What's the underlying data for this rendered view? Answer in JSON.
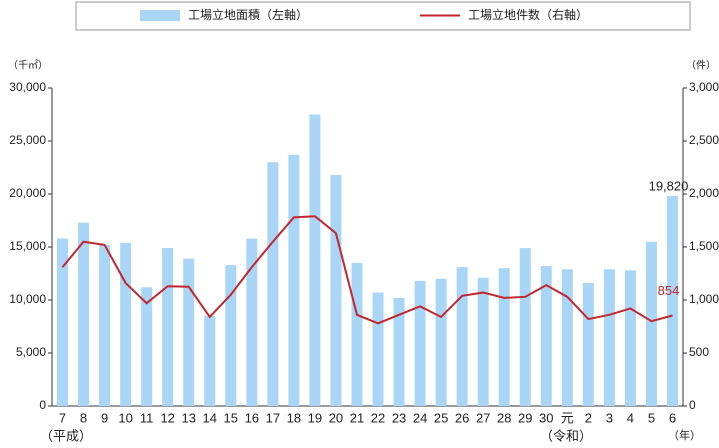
{
  "chart_data": {
    "type": "bar_line",
    "categories": [
      "7",
      "8",
      "9",
      "10",
      "11",
      "12",
      "13",
      "14",
      "15",
      "16",
      "17",
      "18",
      "19",
      "20",
      "21",
      "22",
      "23",
      "24",
      "25",
      "26",
      "27",
      "28",
      "29",
      "30",
      "元",
      "2",
      "3",
      "4",
      "5",
      "6"
    ],
    "series": [
      {
        "name": "工場立地面積（左軸）",
        "type": "bar",
        "color": "#a9d5f7",
        "values": [
          15800,
          17300,
          15200,
          15400,
          11200,
          14900,
          13900,
          8500,
          13300,
          15800,
          23000,
          23700,
          27500,
          21800,
          13500,
          10700,
          10200,
          11800,
          12000,
          13100,
          12100,
          13000,
          14900,
          13200,
          12900,
          11600,
          12900,
          12800,
          15500,
          19820
        ],
        "value_labels": [
          null,
          null,
          null,
          null,
          null,
          null,
          null,
          null,
          null,
          null,
          null,
          null,
          null,
          null,
          null,
          null,
          null,
          null,
          null,
          null,
          null,
          null,
          null,
          null,
          null,
          null,
          null,
          null,
          null,
          "19,820"
        ]
      },
      {
        "name": "工場立地件数（右軸）",
        "type": "line",
        "axis": "y2",
        "color": "#c1272d",
        "values": [
          1310,
          1550,
          1520,
          1160,
          970,
          1130,
          1125,
          840,
          1050,
          1310,
          1550,
          1780,
          1790,
          1630,
          860,
          780,
          860,
          940,
          840,
          1040,
          1070,
          1020,
          1030,
          1140,
          1030,
          820,
          860,
          920,
          800,
          854
        ],
        "value_labels": [
          null,
          null,
          null,
          null,
          null,
          null,
          null,
          null,
          null,
          null,
          null,
          null,
          null,
          null,
          null,
          null,
          null,
          null,
          null,
          null,
          null,
          null,
          null,
          null,
          null,
          null,
          null,
          null,
          null,
          "854"
        ]
      }
    ],
    "ylim": [
      0,
      30000
    ],
    "yticks": [
      0,
      {
        "value": 5000,
        "label": "5,000"
      },
      {
        "value": 10000,
        "label": "10,000"
      },
      {
        "value": 15000,
        "label": "15,000"
      },
      {
        "value": 20000,
        "label": "20,000"
      },
      {
        "value": 25000,
        "label": "25,000"
      },
      {
        "value": 30000,
        "label": "30,000"
      }
    ],
    "y2lim": [
      0,
      3000
    ],
    "y2ticks": [
      0,
      500,
      {
        "value": 1000,
        "label": "1,000"
      },
      {
        "value": 1500,
        "label": "1,500"
      },
      {
        "value": 2000,
        "label": "2,000"
      },
      {
        "value": 2500,
        "label": "2,500"
      },
      {
        "value": 3000,
        "label": "3,000"
      }
    ],
    "ylabel": "（千㎡）",
    "y2label": "（件）",
    "xlabel": "（年）",
    "era_labels": [
      "（平成）",
      "（令和）"
    ]
  }
}
